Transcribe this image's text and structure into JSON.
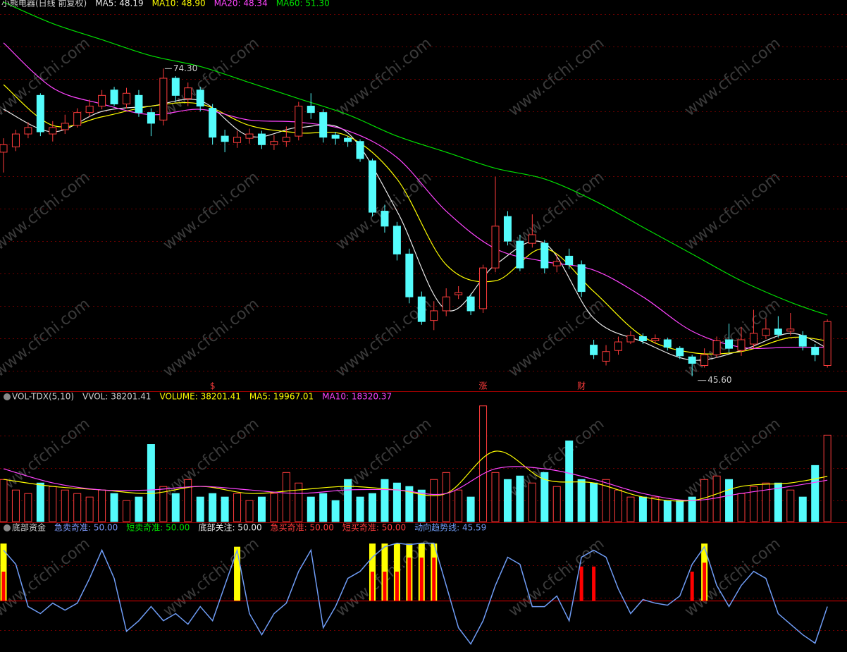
{
  "watermark": "www.cfchi.com",
  "chart_data": [
    {
      "type": "candlestick",
      "title": "小熊电器(日线 前复权)",
      "ylim": [
        44.2,
        80.7
      ],
      "up_color": "#ff3c3c",
      "down_color": "#54fcfc",
      "open": [
        66.5,
        67.0,
        68.2,
        71.8,
        68.2,
        68.6,
        69.0,
        70.2,
        70.8,
        72.3,
        71.0,
        71.8,
        70.2,
        69.5,
        73.4,
        71.5,
        72.3,
        70.6,
        68.0,
        67.4,
        67.8,
        68.2,
        67.2,
        67.5,
        68.0,
        70.8,
        70.2,
        68.1,
        67.8,
        67.5,
        65.7,
        61.0,
        59.6,
        57.0,
        53.0,
        50.8,
        51.7,
        53.2,
        53.0,
        51.9,
        55.7,
        60.5,
        58.2,
        58.0,
        58.0,
        55.9,
        56.8,
        56.0,
        48.5,
        47.0,
        48.0,
        48.8,
        49.3,
        48.9,
        49.0,
        48.2,
        47.4,
        46.6,
        47.6,
        49.0,
        48.0,
        48.6,
        49.4,
        50.0,
        49.8,
        49.4,
        48.3,
        46.6
      ],
      "close": [
        67.2,
        68.2,
        68.8,
        68.4,
        68.8,
        69.2,
        70.2,
        70.8,
        71.8,
        71.0,
        72.0,
        70.2,
        69.2,
        73.4,
        71.8,
        72.5,
        70.8,
        67.9,
        67.5,
        67.9,
        68.2,
        67.2,
        67.5,
        67.9,
        70.8,
        70.2,
        67.9,
        67.8,
        67.5,
        65.9,
        60.9,
        59.6,
        57.0,
        53.0,
        50.7,
        51.7,
        53.0,
        53.4,
        51.7,
        55.7,
        59.6,
        58.2,
        55.7,
        58.8,
        55.7,
        56.3,
        56.0,
        53.5,
        47.6,
        47.9,
        48.8,
        49.4,
        48.9,
        49.1,
        48.3,
        47.5,
        46.8,
        47.6,
        48.9,
        48.2,
        49.0,
        49.6,
        50.0,
        49.5,
        50.0,
        48.4,
        47.6,
        50.7
      ],
      "high": [
        67.8,
        68.6,
        69.3,
        72.0,
        69.4,
        70.0,
        70.6,
        71.4,
        72.3,
        72.6,
        72.5,
        72.3,
        70.6,
        74.3,
        73.6,
        73.0,
        72.6,
        71.0,
        68.6,
        68.5,
        68.7,
        68.5,
        68.1,
        68.9,
        71.2,
        72.0,
        70.5,
        68.4,
        68.0,
        67.7,
        65.9,
        61.6,
        60.0,
        57.5,
        53.5,
        52.6,
        53.8,
        54.0,
        53.3,
        56.0,
        64.2,
        61.0,
        58.8,
        60.7,
        58.3,
        57.0,
        57.5,
        56.4,
        49.0,
        48.5,
        49.3,
        49.8,
        49.6,
        49.5,
        49.2,
        48.4,
        47.6,
        48.2,
        49.3,
        50.5,
        50.2,
        51.8,
        51.0,
        51.2,
        51.5,
        49.8,
        48.6,
        50.9
      ],
      "low": [
        64.6,
        66.6,
        67.8,
        68.0,
        67.5,
        68.2,
        68.8,
        69.8,
        70.5,
        70.8,
        70.6,
        69.8,
        68.0,
        69.0,
        71.2,
        70.8,
        70.3,
        67.2,
        66.5,
        66.9,
        67.3,
        66.8,
        66.7,
        67.0,
        67.6,
        69.6,
        67.4,
        67.2,
        67.0,
        65.6,
        60.5,
        59.0,
        56.4,
        52.4,
        50.4,
        49.9,
        51.2,
        52.8,
        51.3,
        51.5,
        55.3,
        57.8,
        55.4,
        57.6,
        55.2,
        55.3,
        55.6,
        53.0,
        47.2,
        46.6,
        47.6,
        48.6,
        48.6,
        48.6,
        48.0,
        47.2,
        45.6,
        46.4,
        47.3,
        47.8,
        47.5,
        48.2,
        49.1,
        49.2,
        49.4,
        48.0,
        47.0,
        46.4
      ],
      "max_label": "74.30",
      "min_label": "45.60",
      "event_labels": [
        null,
        null,
        null,
        null,
        null,
        null,
        null,
        null,
        null,
        null,
        null,
        null,
        null,
        null,
        null,
        null,
        null,
        "$",
        null,
        null,
        null,
        null,
        null,
        null,
        null,
        null,
        null,
        null,
        null,
        null,
        null,
        null,
        null,
        null,
        null,
        null,
        null,
        null,
        null,
        "涨",
        null,
        null,
        null,
        null,
        null,
        null,
        null,
        "财",
        null,
        null,
        null,
        null,
        null,
        null,
        null,
        null,
        null,
        null,
        null,
        null,
        null,
        null,
        null,
        null,
        null,
        null,
        null,
        null
      ],
      "series": [
        {
          "name": "MA5: 48.19",
          "color": "#e8e8e8",
          "x": [
            0,
            4,
            8,
            12,
            16,
            20,
            24,
            28,
            32,
            36,
            40,
            44,
            48,
            52,
            56,
            60,
            64,
            67
          ],
          "values": [
            70.5,
            68.4,
            70.3,
            70.8,
            71.3,
            68.0,
            68.8,
            68.3,
            61.0,
            51.8,
            56.0,
            58.0,
            51.0,
            48.8,
            47.1,
            48.0,
            49.6,
            48.2
          ]
        },
        {
          "name": "MA10: 48.90",
          "color": "#ffff00",
          "x": [
            0,
            4,
            8,
            12,
            16,
            20,
            24,
            28,
            32,
            36,
            40,
            44,
            48,
            52,
            56,
            60,
            64,
            67
          ],
          "values": [
            72.8,
            69.0,
            69.8,
            70.8,
            71.0,
            69.0,
            68.3,
            68.0,
            64.0,
            56.0,
            54.5,
            57.5,
            53.5,
            49.3,
            47.8,
            47.9,
            49.2,
            48.9
          ]
        },
        {
          "name": "MA20: 48.34",
          "color": "#ff44ff",
          "x": [
            0,
            4,
            8,
            12,
            16,
            20,
            24,
            28,
            32,
            36,
            40,
            44,
            48,
            52,
            56,
            60,
            64,
            67
          ],
          "values": [
            76.7,
            72.5,
            71.0,
            70.0,
            70.5,
            69.5,
            69.3,
            68.5,
            66.0,
            61.0,
            57.5,
            56.3,
            55.5,
            53.0,
            49.8,
            48.3,
            48.3,
            48.3
          ]
        },
        {
          "name": "MA60: 51.30",
          "color": "#00e000",
          "x": [
            0,
            4,
            8,
            12,
            16,
            20,
            24,
            28,
            32,
            36,
            40,
            44,
            48,
            52,
            56,
            60,
            64,
            67
          ],
          "values": [
            80.5,
            78.5,
            77.0,
            75.5,
            74.5,
            73.0,
            71.5,
            70.0,
            68.0,
            66.5,
            65.0,
            64.0,
            62.0,
            59.5,
            57.0,
            54.5,
            52.5,
            51.3
          ]
        }
      ]
    },
    {
      "type": "volume",
      "title": "VOL-TDX(5,10)",
      "subtitle": "VVOL: 38201.41",
      "ylim": [
        0,
        57000
      ],
      "series": [
        {
          "name": "VOLUME: 38201.41",
          "color": "#ffff00",
          "values": [
            18600,
            13950,
            12400,
            17050,
            15500,
            13950,
            12400,
            10850,
            13950,
            12400,
            9300,
            10850,
            34100,
            15500,
            12400,
            18600,
            10850,
            12400,
            10850,
            12400,
            9300,
            10850,
            12400,
            21700,
            17050,
            10850,
            12400,
            9300,
            18600,
            10850,
            12400,
            18600,
            17050,
            15500,
            13950,
            18600,
            21700,
            13950,
            10850,
            51150,
            21700,
            18600,
            20150,
            17050,
            21700,
            15500,
            35650,
            18600,
            17050,
            18600,
            13950,
            10850,
            10850,
            10850,
            9300,
            9300,
            10850,
            18600,
            20150,
            18600,
            12400,
            15500,
            17050,
            17050,
            13950,
            10850,
            24800,
            38201.41
          ]
        },
        {
          "name": "MA5: 19967.01",
          "color": "#ffff00",
          "x": [
            0,
            4,
            8,
            12,
            16,
            20,
            24,
            28,
            32,
            36,
            40,
            44,
            48,
            52,
            56,
            60,
            64,
            67
          ],
          "values": [
            18660,
            15550,
            14000,
            12440,
            15550,
            12440,
            14000,
            15550,
            14000,
            12440,
            31100,
            18660,
            17100,
            10890,
            9330,
            15550,
            17100,
            19967.01
          ]
        },
        {
          "name": "MA10: 18320.37",
          "color": "#ff44ff",
          "x": [
            0,
            4,
            8,
            12,
            16,
            20,
            24,
            28,
            32,
            36,
            40,
            44,
            48,
            52,
            56,
            60,
            64,
            67
          ],
          "values": [
            23330,
            17100,
            14000,
            14000,
            15550,
            14000,
            12440,
            14000,
            14000,
            12440,
            23330,
            23330,
            18660,
            12440,
            9330,
            12440,
            15550,
            18320.37
          ]
        }
      ]
    },
    {
      "type": "signal",
      "title": "底部资金",
      "ylim": [
        10,
        110
      ],
      "hline": 50,
      "hline_color": "#e00000",
      "legend": [
        {
          "text": "急卖奇准: 50.00",
          "color": "#7f9cff"
        },
        {
          "text": "短卖奇准: 50.00",
          "color": "#00e000"
        },
        {
          "text": "底部关注: 50.00",
          "color": "#e8e8e8"
        },
        {
          "text": "急买奇准: 50.00",
          "color": "#ff3c3c"
        },
        {
          "text": "短买奇准: 50.00",
          "color": "#ff3c3c"
        }
      ],
      "bars": [
        {
          "color": "#ffff00",
          "values": [
            95,
            null,
            null,
            null,
            null,
            null,
            null,
            null,
            null,
            null,
            null,
            null,
            null,
            null,
            null,
            null,
            null,
            null,
            null,
            92.5,
            null,
            null,
            null,
            null,
            null,
            null,
            null,
            null,
            null,
            null,
            95,
            95,
            95,
            95,
            95,
            95,
            null,
            null,
            null,
            null,
            null,
            null,
            null,
            null,
            null,
            null,
            null,
            null,
            null,
            null,
            null,
            null,
            null,
            null,
            null,
            null,
            null,
            95,
            null,
            null,
            null,
            null,
            null,
            null,
            null,
            null,
            null,
            null
          ]
        },
        {
          "color": "#ff0000",
          "values": [
            73,
            null,
            null,
            null,
            null,
            null,
            null,
            null,
            null,
            null,
            null,
            null,
            null,
            null,
            null,
            null,
            null,
            null,
            null,
            null,
            null,
            null,
            null,
            null,
            null,
            null,
            null,
            null,
            null,
            null,
            73,
            73,
            73,
            84,
            84,
            84,
            null,
            null,
            null,
            null,
            null,
            null,
            null,
            null,
            null,
            null,
            null,
            77,
            77,
            null,
            null,
            null,
            null,
            null,
            null,
            null,
            73,
            80,
            null,
            null,
            null,
            null,
            null,
            null,
            null,
            null,
            null,
            null
          ]
        }
      ],
      "series": [
        {
          "name": "动向趋势线: 45.59",
          "color": "#6f9cf5",
          "values": [
            89.8,
            78.7,
            45.6,
            40.1,
            48.3,
            42.8,
            48.3,
            67.7,
            89.8,
            67.7,
            26.2,
            34.5,
            45.6,
            34.5,
            40.1,
            31.8,
            45.6,
            34.5,
            62.2,
            89.8,
            40.1,
            23.5,
            40.1,
            48.3,
            73.2,
            89.8,
            29.0,
            45.6,
            67.7,
            73.2,
            84.3,
            92.5,
            95.3,
            94.2,
            95.3,
            95.3,
            62.2,
            29.0,
            16.3,
            34.5,
            62.2,
            84.3,
            78.7,
            45.6,
            45.6,
            53.9,
            34.5,
            84.3,
            89.8,
            84.3,
            59.4,
            40.1,
            51.1,
            48.3,
            46.7,
            53.9,
            78.7,
            92.5,
            62.2,
            45.6,
            62.2,
            73.2,
            67.7,
            40.1,
            31.8,
            23.5,
            16.9,
            45.6
          ]
        }
      ]
    }
  ]
}
